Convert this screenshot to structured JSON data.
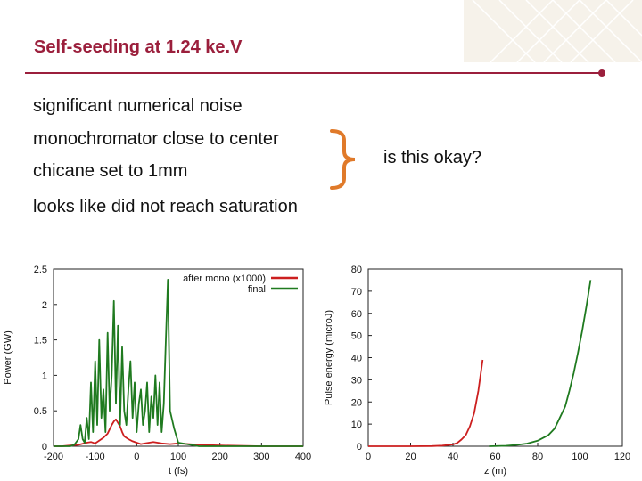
{
  "slide": {
    "title": "Self-seeding at 1.24 ke.V",
    "bullets": [
      "significant numerical noise",
      "monochromator close to center",
      "chicane set to 1mm",
      "looks like did not reach saturation"
    ],
    "question": "is this okay?",
    "accent_color": "#9b1f3c",
    "brace_color": "#e07a2a"
  },
  "chart_data": [
    {
      "type": "line",
      "xlabel": "t (fs)",
      "ylabel": "Power (GW)",
      "xlim": [
        -200,
        400
      ],
      "ylim": [
        0,
        2.5
      ],
      "xticks": [
        -200,
        -100,
        0,
        100,
        200,
        300,
        400
      ],
      "yticks": [
        0,
        0.5,
        1,
        1.5,
        2,
        2.5
      ],
      "xtick_labels": [
        "-200",
        "-100",
        "0",
        "100",
        "200",
        "300",
        "400"
      ],
      "ytick_labels": [
        "0",
        "0.5",
        "1",
        "1.5",
        "2",
        "2.5"
      ],
      "legend_position": "top-right",
      "series": [
        {
          "name": "after mono (x1000)",
          "color": "#cc1f1f",
          "x": [
            -200,
            -180,
            -160,
            -140,
            -120,
            -110,
            -100,
            -90,
            -80,
            -70,
            -60,
            -55,
            -50,
            -45,
            -40,
            -35,
            -30,
            -20,
            -10,
            0,
            10,
            20,
            40,
            60,
            80,
            100,
            150,
            200,
            300,
            400
          ],
          "y": [
            0,
            0,
            0.01,
            0.02,
            0.05,
            0.06,
            0.04,
            0.08,
            0.12,
            0.18,
            0.3,
            0.35,
            0.38,
            0.33,
            0.28,
            0.2,
            0.14,
            0.1,
            0.07,
            0.05,
            0.03,
            0.04,
            0.06,
            0.04,
            0.03,
            0.04,
            0.02,
            0.01,
            0,
            0
          ]
        },
        {
          "name": "final",
          "color": "#1f7a1f",
          "x": [
            -200,
            -160,
            -150,
            -140,
            -135,
            -130,
            -125,
            -120,
            -115,
            -110,
            -105,
            -100,
            -95,
            -90,
            -85,
            -80,
            -75,
            -70,
            -65,
            -60,
            -55,
            -50,
            -45,
            -40,
            -35,
            -30,
            -25,
            -20,
            -15,
            -10,
            -5,
            0,
            5,
            10,
            15,
            20,
            25,
            30,
            35,
            40,
            45,
            50,
            55,
            60,
            65,
            70,
            75,
            80,
            90,
            100,
            150,
            400
          ],
          "y": [
            0,
            0,
            0.02,
            0.1,
            0.3,
            0.1,
            0.05,
            0.4,
            0.1,
            0.9,
            0.2,
            1.2,
            0.3,
            1.5,
            0.4,
            0.8,
            0.2,
            1.6,
            0.5,
            1.0,
            2.05,
            0.6,
            1.7,
            0.3,
            1.4,
            0.5,
            0.3,
            0.8,
            1.2,
            0.4,
            0.9,
            0.2,
            0.6,
            0.8,
            0.3,
            0.5,
            0.9,
            0.2,
            0.7,
            0.4,
            1.0,
            0.3,
            0.9,
            0.2,
            0.6,
            1.5,
            2.35,
            0.5,
            0.25,
            0.05,
            0,
            0
          ]
        }
      ]
    },
    {
      "type": "line",
      "xlabel": "z (m)",
      "ylabel": "Pulse energy (microJ)",
      "xlim": [
        0,
        120
      ],
      "ylim": [
        0,
        80
      ],
      "xticks": [
        0,
        20,
        40,
        60,
        80,
        100,
        120
      ],
      "yticks": [
        0,
        10,
        20,
        30,
        40,
        50,
        60,
        70,
        80
      ],
      "xtick_labels": [
        "0",
        "20",
        "40",
        "60",
        "80",
        "100",
        "120"
      ],
      "ytick_labels": [
        "0",
        "10",
        "20",
        "30",
        "40",
        "50",
        "60",
        "70",
        "80"
      ],
      "series": [
        {
          "color": "#cc1f1f",
          "x": [
            0,
            10,
            20,
            30,
            35,
            40,
            42,
            44,
            46,
            48,
            50,
            52,
            54
          ],
          "y": [
            0,
            0,
            0,
            0.1,
            0.3,
            0.8,
            1.5,
            3,
            5,
            9,
            15,
            25,
            39
          ]
        },
        {
          "color": "#1f7a1f",
          "x": [
            57,
            65,
            70,
            75,
            80,
            85,
            88,
            90,
            93,
            95,
            97,
            99,
            101,
            103,
            105
          ],
          "y": [
            0,
            0.2,
            0.6,
            1.2,
            2.5,
            5,
            8,
            12,
            18,
            25,
            33,
            42,
            52,
            63,
            75
          ]
        }
      ]
    }
  ]
}
